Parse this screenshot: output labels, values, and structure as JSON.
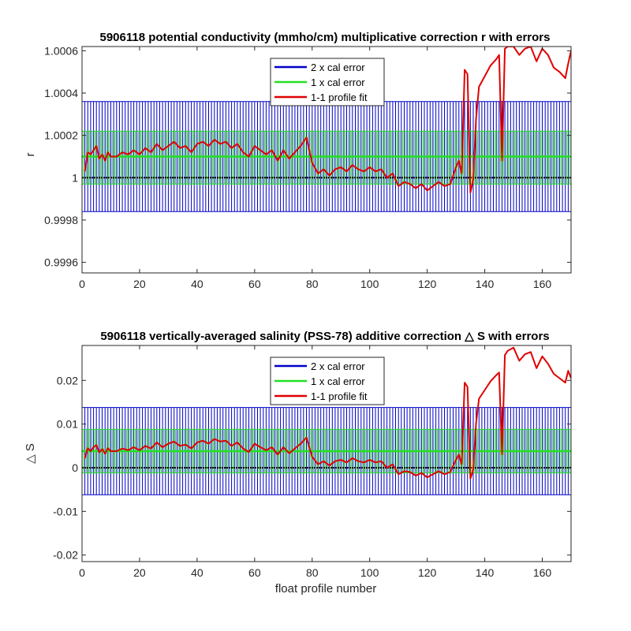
{
  "chart_data": [
    {
      "type": "line",
      "title": "5906118 potential conductivity (mmho/cm) multiplicative correction r with errors",
      "xlabel": "",
      "ylabel": "r",
      "xlim": [
        0,
        170
      ],
      "ylim": [
        0.99955,
        1.00062
      ],
      "xticks": [
        0,
        20,
        40,
        60,
        80,
        100,
        120,
        140,
        160
      ],
      "xtick_labels": [
        "0",
        "20",
        "40",
        "60",
        "80",
        "100",
        "120",
        "140",
        "160"
      ],
      "yticks": [
        0.9996,
        0.9998,
        1.0,
        1.0002,
        1.0004,
        1.0006
      ],
      "ytick_labels": [
        "0.9996",
        "0.9998",
        "1",
        "1.0002",
        "1.0004",
        "1.0006"
      ],
      "reference_line": 1.0,
      "legend_position": "top-center",
      "legend": [
        "2 x cal error",
        "1 x cal error",
        "1-1 profile fit"
      ],
      "colors": {
        "cal2": "#0000c8",
        "cal1": "#22e022",
        "fit": "#e00000",
        "ref": "#000000"
      },
      "series": [
        {
          "name": "2 x cal error",
          "center": 1.0001,
          "lower": 0.99984,
          "upper": 1.00036
        },
        {
          "name": "1 x cal error",
          "center": 1.0001,
          "lower": 0.99997,
          "upper": 1.00022
        },
        {
          "name": "1-1 profile fit",
          "x": [
            1,
            2,
            3,
            4,
            5,
            6,
            7,
            8,
            9,
            10,
            12,
            14,
            16,
            18,
            20,
            22,
            24,
            26,
            28,
            30,
            32,
            34,
            36,
            38,
            40,
            42,
            44,
            46,
            48,
            50,
            52,
            54,
            56,
            58,
            60,
            62,
            64,
            66,
            68,
            70,
            72,
            74,
            76,
            78,
            80,
            82,
            84,
            86,
            88,
            90,
            92,
            94,
            96,
            98,
            100,
            102,
            104,
            106,
            108,
            110,
            112,
            114,
            116,
            118,
            120,
            122,
            124,
            126,
            128,
            130,
            131,
            132,
            133,
            134,
            135,
            136,
            137,
            138,
            140,
            142,
            144,
            145,
            146,
            147,
            148,
            150,
            152,
            154,
            156,
            158,
            160,
            162,
            164,
            166,
            168,
            169,
            170
          ],
          "y": [
            1.00003,
            1.00012,
            1.00011,
            1.00013,
            1.00015,
            1.00009,
            1.00011,
            1.00008,
            1.00012,
            1.0001,
            1.0001,
            1.00012,
            1.00011,
            1.00013,
            1.00011,
            1.00014,
            1.00012,
            1.00016,
            1.00013,
            1.00015,
            1.00017,
            1.00014,
            1.00015,
            1.00012,
            1.00016,
            1.00017,
            1.00015,
            1.00018,
            1.00016,
            1.00017,
            1.00014,
            1.00016,
            1.00012,
            1.0001,
            1.00015,
            1.00013,
            1.00011,
            1.00013,
            1.00008,
            1.00013,
            1.00009,
            1.00012,
            1.00015,
            1.00019,
            1.00007,
            1.00002,
            1.00004,
            1.00001,
            1.00004,
            1.00005,
            1.00003,
            1.00006,
            1.00004,
            1.00003,
            1.00005,
            1.00003,
            1.00004,
            1.0,
            1.00002,
            0.99996,
            0.99998,
            0.99997,
            0.99995,
            0.99997,
            0.99994,
            0.99996,
            0.99998,
            0.99996,
            0.99997,
            1.00005,
            1.00008,
            1.00002,
            1.00051,
            1.00049,
            0.99993,
            0.99999,
            1.00028,
            1.00043,
            1.00048,
            1.00053,
            1.00056,
            1.00058,
            1.00008,
            1.00061,
            1.00062,
            1.00062,
            1.00058,
            1.00061,
            1.00062,
            1.00055,
            1.00061,
            1.00058,
            1.00052,
            1.0005,
            1.00047,
            1.00054,
            1.0006
          ]
        }
      ]
    },
    {
      "type": "line",
      "title": "5906118 vertically-averaged salinity (PSS-78) additive correction △ S with errors",
      "xlabel": "float profile number",
      "ylabel": "△ S",
      "xlim": [
        0,
        170
      ],
      "ylim": [
        -0.0215,
        0.028
      ],
      "xticks": [
        0,
        20,
        40,
        60,
        80,
        100,
        120,
        140,
        160
      ],
      "xtick_labels": [
        "0",
        "20",
        "40",
        "60",
        "80",
        "100",
        "120",
        "140",
        "160"
      ],
      "yticks": [
        -0.02,
        -0.01,
        0,
        0.01,
        0.02
      ],
      "ytick_labels": [
        "-0.02",
        "-0.01",
        "0",
        "0.01",
        "0.02"
      ],
      "reference_line": 0,
      "legend_position": "top-center",
      "legend": [
        "2 x cal error",
        "1 x cal error",
        "1-1 profile fit"
      ],
      "colors": {
        "cal2": "#0000c8",
        "cal1": "#22e022",
        "fit": "#e00000",
        "ref": "#000000"
      },
      "series": [
        {
          "name": "2 x cal error",
          "center": 0.0038,
          "lower": -0.0062,
          "upper": 0.0138
        },
        {
          "name": "1 x cal error",
          "center": 0.0038,
          "lower": -0.0012,
          "upper": 0.0088
        },
        {
          "name": "1-1 profile fit",
          "x": [
            1,
            2,
            3,
            4,
            5,
            6,
            7,
            8,
            9,
            10,
            12,
            14,
            16,
            18,
            20,
            22,
            24,
            26,
            28,
            30,
            32,
            34,
            36,
            38,
            40,
            42,
            44,
            46,
            48,
            50,
            52,
            54,
            56,
            58,
            60,
            62,
            64,
            66,
            68,
            70,
            72,
            74,
            76,
            78,
            80,
            82,
            84,
            86,
            88,
            90,
            92,
            94,
            96,
            98,
            100,
            102,
            104,
            106,
            108,
            110,
            112,
            114,
            116,
            118,
            120,
            122,
            124,
            126,
            128,
            130,
            131,
            132,
            133,
            134,
            135,
            136,
            137,
            138,
            140,
            142,
            144,
            145,
            146,
            147,
            148,
            150,
            152,
            154,
            156,
            158,
            160,
            162,
            164,
            166,
            168,
            169,
            170
          ],
          "y": [
            0.0022,
            0.0045,
            0.0038,
            0.0047,
            0.0052,
            0.0035,
            0.0043,
            0.0032,
            0.0045,
            0.0038,
            0.0038,
            0.0044,
            0.004,
            0.0047,
            0.004,
            0.005,
            0.0044,
            0.0058,
            0.0047,
            0.0055,
            0.006,
            0.005,
            0.0053,
            0.0044,
            0.0058,
            0.0062,
            0.0055,
            0.0066,
            0.006,
            0.0062,
            0.005,
            0.0058,
            0.0044,
            0.0036,
            0.0055,
            0.0047,
            0.004,
            0.0047,
            0.003,
            0.0047,
            0.0033,
            0.0044,
            0.0055,
            0.0069,
            0.0025,
            0.0008,
            0.0015,
            0.0005,
            0.0015,
            0.0018,
            0.0012,
            0.0022,
            0.0015,
            0.0012,
            0.0018,
            0.0012,
            0.0015,
            0.0,
            0.0008,
            -0.0015,
            -0.0008,
            -0.001,
            -0.0018,
            -0.0012,
            -0.0022,
            -0.0015,
            -0.0008,
            -0.0015,
            -0.001,
            0.0018,
            0.003,
            0.0008,
            0.0195,
            0.0185,
            -0.0025,
            -0.0005,
            0.0102,
            0.0158,
            0.0178,
            0.0198,
            0.0212,
            0.0218,
            0.003,
            0.0258,
            0.0268,
            0.0275,
            0.0245,
            0.026,
            0.0265,
            0.0228,
            0.0255,
            0.0238,
            0.0215,
            0.0205,
            0.0195,
            0.0222,
            0.0205
          ]
        }
      ]
    }
  ]
}
